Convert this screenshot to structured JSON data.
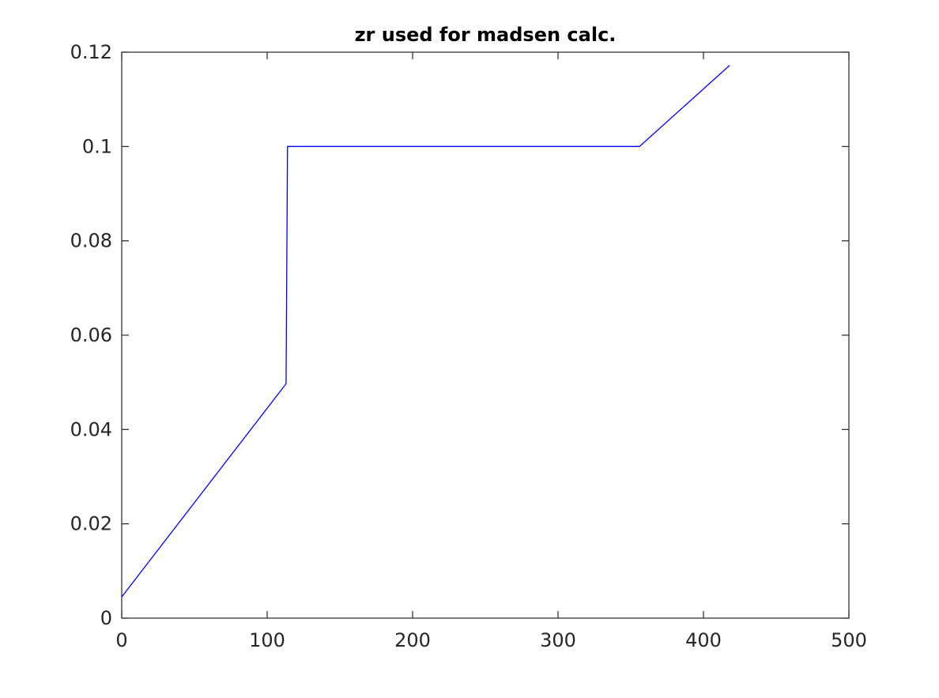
{
  "chart_data": {
    "type": "line",
    "title": "zr used for madsen calc.",
    "xlabel": "",
    "ylabel": "",
    "xlim": [
      0,
      500
    ],
    "ylim": [
      0,
      0.12
    ],
    "x_ticks": [
      "0",
      "100",
      "200",
      "300",
      "400",
      "500"
    ],
    "y_ticks": [
      "0",
      "0.02",
      "0.04",
      "0.06",
      "0.08",
      "0.1",
      "0.12"
    ],
    "x_tick_values": [
      0,
      100,
      200,
      300,
      400,
      500
    ],
    "y_tick_values": [
      0,
      0.02,
      0.04,
      0.06,
      0.08,
      0.1,
      0.12
    ],
    "grid": false,
    "series": [
      {
        "color": "#0000ff",
        "x": [
          0,
          113,
          114,
          356,
          418
        ],
        "y": [
          0.0045,
          0.0497,
          0.1,
          0.1,
          0.1172
        ]
      }
    ]
  }
}
